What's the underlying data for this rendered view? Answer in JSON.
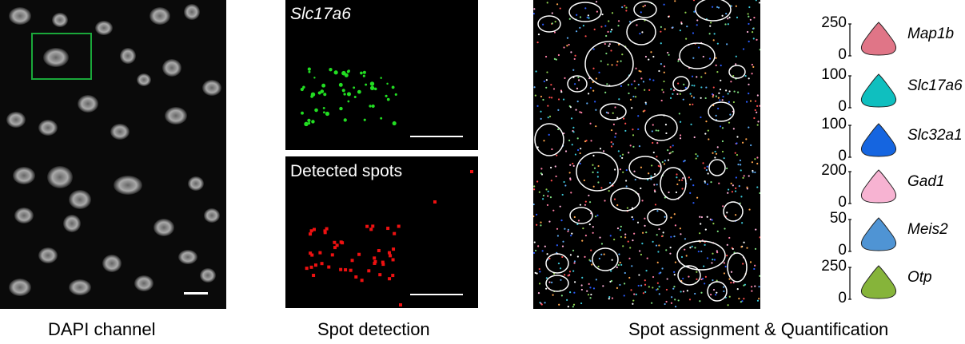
{
  "captions": {
    "dapi": "DAPI channel",
    "spot": "Spot detection",
    "assign": "Spot assignment & Quantification"
  },
  "spot_panels": {
    "top_label": "Slc17a6",
    "bottom_label": "Detected spots"
  },
  "colors": {
    "roi_box": "#1aa83a",
    "green_spot": "#22dd22",
    "red_spot": "#ee1111",
    "outline": "#ffffff"
  },
  "violins": [
    {
      "gene": "Map1b",
      "ticks": [
        "250",
        "0"
      ],
      "color": "#e07587"
    },
    {
      "gene": "Slc17a6",
      "ticks": [
        "100",
        "0"
      ],
      "color": "#0fbfbf"
    },
    {
      "gene": "Slc32a1",
      "ticks": [
        "100",
        "0"
      ],
      "color": "#1565e0"
    },
    {
      "gene": "Gad1",
      "ticks": [
        "200",
        "0"
      ],
      "color": "#f7b3d2"
    },
    {
      "gene": "Meis2",
      "ticks": [
        "50",
        "0"
      ],
      "color": "#4f94d4"
    },
    {
      "gene": "Otp",
      "ticks": [
        "250",
        "0"
      ],
      "color": "#86b43a"
    }
  ]
}
